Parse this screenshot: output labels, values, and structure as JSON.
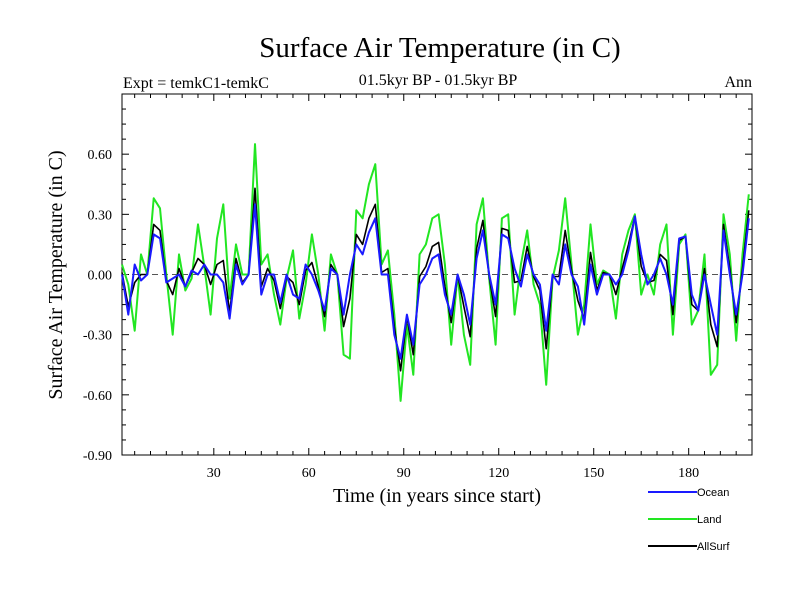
{
  "chart_data": {
    "type": "line",
    "title": "Surface Air Temperature (in C)",
    "subtitle": "01.5kyr BP - 01.5kyr BP",
    "left_label": "Expt = temkC1-temkC",
    "right_label": "Ann",
    "xlabel": "Time (in years since start)",
    "ylabel": "Surface Air Temperature (in C)",
    "xlim": [
      1,
      200
    ],
    "ylim": [
      -0.9,
      0.9
    ],
    "x_ticks": [
      30,
      60,
      90,
      120,
      150,
      180
    ],
    "y_ticks": [
      -0.9,
      -0.6,
      -0.3,
      0.0,
      0.3,
      0.6
    ],
    "y_tick_labels": [
      "-0.90",
      "-0.60",
      "-0.30",
      "0.00",
      "0.30",
      "0.60"
    ],
    "reference_line": 0.0,
    "legend_position": "bottom-right",
    "series": [
      {
        "name": "Ocean",
        "color": "#1a1aff",
        "x": [
          1,
          3,
          5,
          7,
          9,
          11,
          13,
          15,
          17,
          19,
          21,
          23,
          25,
          27,
          29,
          31,
          33,
          35,
          37,
          39,
          41,
          43,
          45,
          47,
          49,
          51,
          53,
          55,
          57,
          59,
          61,
          63,
          65,
          67,
          69,
          71,
          73,
          75,
          77,
          79,
          81,
          83,
          85,
          87,
          89,
          91,
          93,
          95,
          97,
          99,
          101,
          103,
          105,
          107,
          109,
          111,
          113,
          115,
          117,
          119,
          121,
          123,
          125,
          127,
          129,
          131,
          133,
          135,
          137,
          139,
          141,
          143,
          145,
          147,
          149,
          151,
          153,
          155,
          157,
          159,
          161,
          163,
          165,
          167,
          169,
          171,
          173,
          175,
          177,
          179,
          181,
          183,
          185,
          187,
          189,
          191,
          193,
          195,
          197,
          199
        ],
        "values": [
          0.0,
          -0.2,
          0.05,
          -0.03,
          0.0,
          0.2,
          0.18,
          -0.04,
          -0.02,
          0.0,
          -0.06,
          0.02,
          0.0,
          0.05,
          0.0,
          0.0,
          -0.04,
          -0.22,
          0.05,
          -0.05,
          0.0,
          0.35,
          -0.1,
          0.0,
          0.0,
          -0.14,
          0.0,
          -0.1,
          -0.12,
          0.05,
          0.0,
          -0.08,
          -0.18,
          0.03,
          0.0,
          -0.2,
          0.0,
          0.15,
          0.1,
          0.21,
          0.28,
          0.0,
          0.0,
          -0.3,
          -0.42,
          -0.2,
          -0.35,
          -0.05,
          0.0,
          0.08,
          0.1,
          -0.1,
          -0.2,
          0.0,
          -0.1,
          -0.25,
          0.08,
          0.22,
          0.0,
          -0.15,
          0.2,
          0.18,
          0.03,
          -0.06,
          0.1,
          0.0,
          -0.05,
          -0.28,
          0.0,
          -0.05,
          0.15,
          0.0,
          -0.06,
          -0.25,
          0.05,
          -0.1,
          0.0,
          0.0,
          -0.05,
          0.0,
          0.12,
          0.29,
          0.1,
          -0.05,
          0.0,
          0.08,
          0.0,
          -0.15,
          0.18,
          0.19,
          -0.1,
          -0.18,
          0.0,
          -0.15,
          -0.3,
          0.22,
          0.0,
          -0.2,
          0.0,
          0.28
        ]
      },
      {
        "name": "Land",
        "color": "#22e622",
        "x": [
          1,
          3,
          5,
          7,
          9,
          11,
          13,
          15,
          17,
          19,
          21,
          23,
          25,
          27,
          29,
          31,
          33,
          35,
          37,
          39,
          41,
          43,
          45,
          47,
          49,
          51,
          53,
          55,
          57,
          59,
          61,
          63,
          65,
          67,
          69,
          71,
          73,
          75,
          77,
          79,
          81,
          83,
          85,
          87,
          89,
          91,
          93,
          95,
          97,
          99,
          101,
          103,
          105,
          107,
          109,
          111,
          113,
          115,
          117,
          119,
          121,
          123,
          125,
          127,
          129,
          131,
          133,
          135,
          137,
          139,
          141,
          143,
          145,
          147,
          149,
          151,
          153,
          155,
          157,
          159,
          161,
          163,
          165,
          167,
          169,
          171,
          173,
          175,
          177,
          179,
          181,
          183,
          185,
          187,
          189,
          191,
          193,
          195,
          197,
          199
        ],
        "values": [
          0.05,
          -0.05,
          -0.28,
          0.1,
          0.0,
          0.38,
          0.33,
          0.0,
          -0.3,
          0.1,
          -0.08,
          -0.02,
          0.25,
          0.04,
          -0.2,
          0.18,
          0.35,
          -0.12,
          0.15,
          0.0,
          0.0,
          0.65,
          0.05,
          0.1,
          -0.1,
          -0.25,
          -0.02,
          0.12,
          -0.22,
          -0.05,
          0.2,
          0.0,
          -0.28,
          0.1,
          0.0,
          -0.4,
          -0.42,
          0.32,
          0.28,
          0.45,
          0.55,
          0.05,
          0.12,
          -0.2,
          -0.63,
          -0.25,
          -0.5,
          0.1,
          0.15,
          0.28,
          0.3,
          0.05,
          -0.35,
          0.0,
          -0.3,
          -0.45,
          0.25,
          0.38,
          -0.02,
          -0.35,
          0.28,
          0.3,
          -0.2,
          0.05,
          0.22,
          -0.05,
          -0.15,
          -0.55,
          -0.02,
          0.12,
          0.38,
          0.05,
          -0.3,
          -0.15,
          0.25,
          -0.05,
          0.02,
          0.0,
          -0.22,
          0.1,
          0.22,
          0.3,
          -0.1,
          0.0,
          -0.1,
          0.15,
          0.25,
          -0.3,
          0.15,
          0.2,
          -0.25,
          -0.18,
          0.1,
          -0.5,
          -0.45,
          0.3,
          0.1,
          -0.33,
          0.1,
          0.4
        ]
      },
      {
        "name": "AllSurf",
        "color": "#000000",
        "x": [
          1,
          3,
          5,
          7,
          9,
          11,
          13,
          15,
          17,
          19,
          21,
          23,
          25,
          27,
          29,
          31,
          33,
          35,
          37,
          39,
          41,
          43,
          45,
          47,
          49,
          51,
          53,
          55,
          57,
          59,
          61,
          63,
          65,
          67,
          69,
          71,
          73,
          75,
          77,
          79,
          81,
          83,
          85,
          87,
          89,
          91,
          93,
          95,
          97,
          99,
          101,
          103,
          105,
          107,
          109,
          111,
          113,
          115,
          117,
          119,
          121,
          123,
          125,
          127,
          129,
          131,
          133,
          135,
          137,
          139,
          141,
          143,
          145,
          147,
          149,
          151,
          153,
          155,
          157,
          159,
          161,
          163,
          165,
          167,
          169,
          171,
          173,
          175,
          177,
          179,
          181,
          183,
          185,
          187,
          189,
          191,
          193,
          195,
          197,
          199
        ],
        "values": [
          0.01,
          -0.16,
          -0.04,
          0.0,
          0.0,
          0.25,
          0.22,
          -0.03,
          -0.1,
          0.03,
          -0.06,
          0.01,
          0.08,
          0.05,
          -0.05,
          0.05,
          0.07,
          -0.19,
          0.08,
          -0.04,
          0.0,
          0.43,
          -0.06,
          0.03,
          -0.03,
          -0.17,
          -0.01,
          -0.04,
          -0.15,
          0.02,
          0.06,
          -0.06,
          -0.21,
          0.05,
          0.0,
          -0.26,
          -0.12,
          0.2,
          0.15,
          0.28,
          0.35,
          0.01,
          0.03,
          -0.26,
          -0.48,
          -0.21,
          -0.4,
          -0.01,
          0.04,
          0.14,
          0.16,
          -0.06,
          -0.24,
          0.0,
          -0.16,
          -0.31,
          0.13,
          0.27,
          -0.01,
          -0.21,
          0.23,
          0.22,
          -0.04,
          -0.03,
          0.14,
          -0.01,
          -0.08,
          -0.37,
          -0.01,
          -0.01,
          0.22,
          0.02,
          -0.13,
          -0.22,
          0.11,
          -0.08,
          0.01,
          0.0,
          -0.1,
          0.03,
          0.15,
          0.29,
          0.04,
          -0.04,
          -0.03,
          0.1,
          0.07,
          -0.2,
          0.17,
          0.19,
          -0.15,
          -0.18,
          0.03,
          -0.25,
          -0.36,
          0.25,
          0.03,
          -0.24,
          0.03,
          0.32
        ]
      }
    ]
  }
}
